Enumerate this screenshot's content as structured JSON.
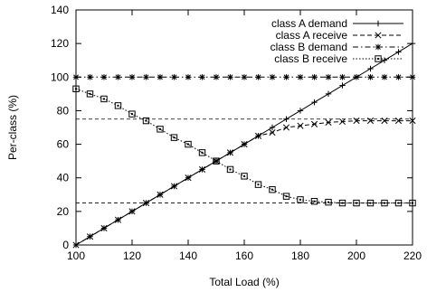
{
  "chart_data": {
    "type": "line",
    "title": "",
    "xlabel": "Total Load (%)",
    "ylabel": "Per-class (%)",
    "xlim": [
      100,
      220
    ],
    "ylim": [
      0,
      140
    ],
    "xticks": [
      100,
      120,
      140,
      160,
      180,
      200,
      220
    ],
    "yticks": [
      0,
      20,
      40,
      60,
      80,
      100,
      120,
      140
    ],
    "grid": false,
    "legend_position": "top-right",
    "reference_lines": [
      25,
      75
    ],
    "series": [
      {
        "name": "class A demand",
        "line_style": "solid",
        "marker": "plus",
        "color": "#000000",
        "x": [
          100,
          105,
          110,
          115,
          120,
          125,
          130,
          135,
          140,
          145,
          150,
          155,
          160,
          165,
          170,
          175,
          180,
          185,
          190,
          195,
          200,
          205,
          210,
          215,
          220
        ],
        "y": [
          0,
          5,
          10,
          15,
          20,
          25,
          30,
          35,
          40,
          45,
          50,
          55,
          60,
          65,
          70,
          75,
          80,
          85,
          90,
          95,
          100,
          105,
          110,
          115,
          120
        ]
      },
      {
        "name": "class A receive",
        "line_style": "dashed",
        "marker": "x",
        "color": "#000000",
        "x": [
          100,
          105,
          110,
          115,
          120,
          125,
          130,
          135,
          140,
          145,
          150,
          155,
          160,
          165,
          170,
          175,
          180,
          185,
          190,
          195,
          200,
          205,
          210,
          215,
          220
        ],
        "y": [
          0,
          5,
          10,
          15,
          20,
          25,
          30,
          35,
          40,
          45,
          50,
          55,
          60,
          65,
          67,
          70,
          71,
          72,
          73,
          73.5,
          74,
          74,
          74,
          74,
          74
        ]
      },
      {
        "name": "class B demand",
        "line_style": "dash-dot",
        "marker": "star",
        "color": "#000000",
        "x": [
          100,
          105,
          110,
          115,
          120,
          125,
          130,
          135,
          140,
          145,
          150,
          155,
          160,
          165,
          170,
          175,
          180,
          185,
          190,
          195,
          200,
          205,
          210,
          215,
          220
        ],
        "y": [
          100,
          100,
          100,
          100,
          100,
          100,
          100,
          100,
          100,
          100,
          100,
          100,
          100,
          100,
          100,
          100,
          100,
          100,
          100,
          100,
          100,
          100,
          100,
          100,
          100
        ]
      },
      {
        "name": "class B receive",
        "line_style": "dotted",
        "marker": "square",
        "color": "#000000",
        "x": [
          100,
          105,
          110,
          115,
          120,
          125,
          130,
          135,
          140,
          145,
          150,
          155,
          160,
          165,
          170,
          175,
          180,
          185,
          190,
          195,
          200,
          205,
          210,
          215,
          220
        ],
        "y": [
          93,
          90,
          87,
          83,
          78,
          74,
          69,
          64,
          60,
          55,
          50,
          45,
          41,
          36,
          33,
          29,
          27,
          26,
          25.5,
          25,
          25,
          25,
          25,
          25,
          25
        ]
      }
    ]
  }
}
